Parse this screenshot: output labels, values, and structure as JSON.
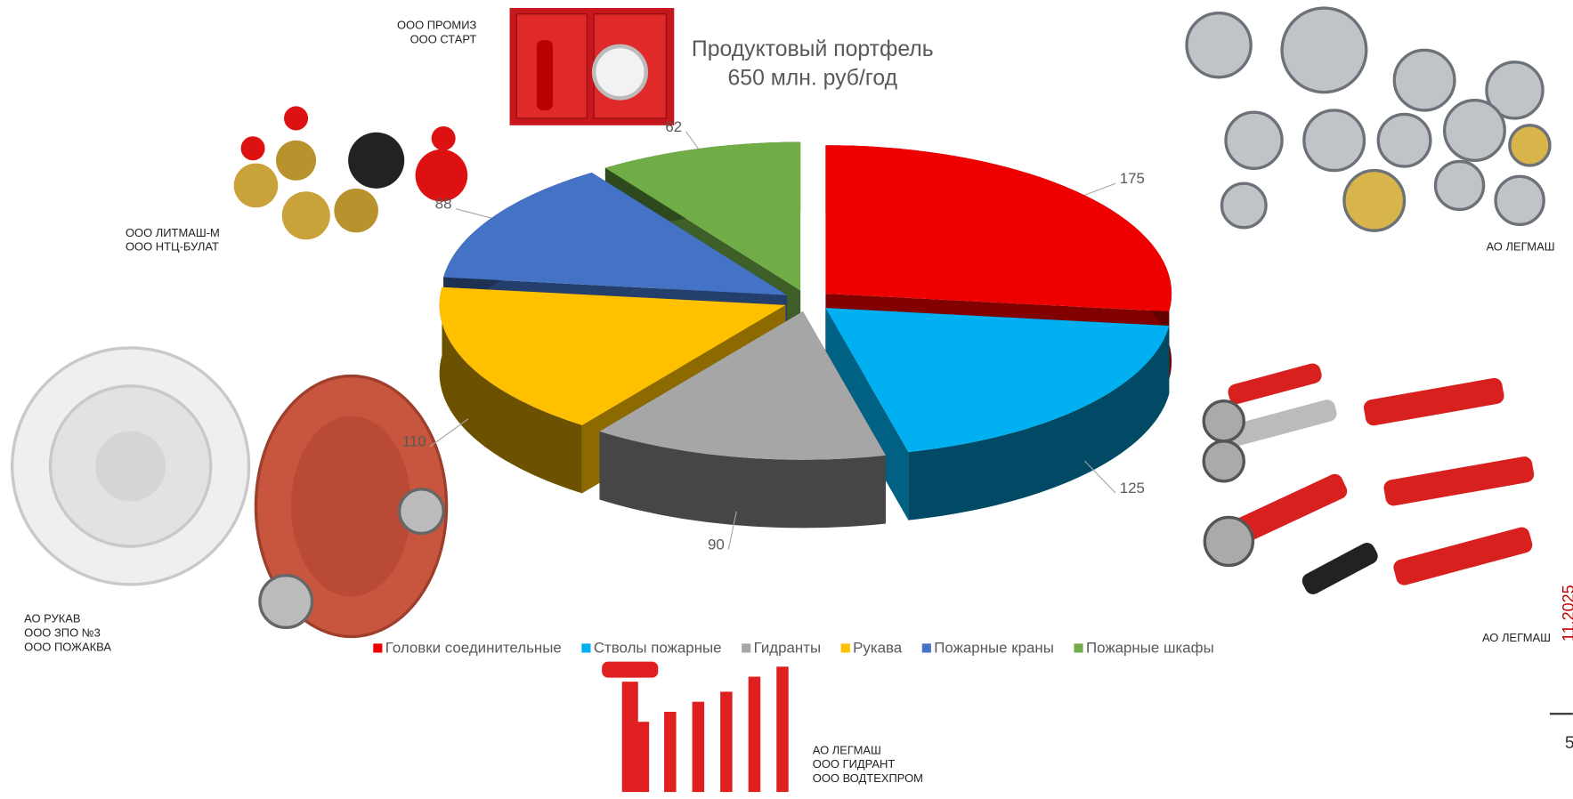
{
  "chart_data": {
    "type": "pie3d",
    "title": "Продуктовый портфель",
    "subtitle": "650 млн. руб/год",
    "categories": [
      "Головки соединительные",
      "Стволы пожарные",
      "Гидранты",
      "Рукава",
      "Пожарные краны",
      "Пожарные шкафы"
    ],
    "values": [
      175,
      125,
      90,
      110,
      88,
      62
    ],
    "colors": [
      "#ee0000",
      "#00b0f0",
      "#a6a6a6",
      "#ffc000",
      "#4472c4",
      "#70ad47"
    ],
    "legend": "bottom"
  },
  "annotations": [
    [
      "ООО ПРОМИЗ",
      "ООО СТАРТ"
    ],
    [
      "ООО ЛИТМАШ-М",
      "ООО НТЦ-БУЛАТ"
    ],
    [
      "АО ЛЕГМАШ"
    ],
    [
      "АО РУКАВ",
      "ООО ЗПО №3",
      "ООО ПОЖАКВА"
    ],
    [
      "АО ЛЕГМАШ"
    ],
    [
      "АО ЛЕГМАШ",
      "ООО ГИДРАНТ",
      "ООО ВОДТЕХПРОМ"
    ]
  ],
  "footer": {
    "date": "11.2025",
    "page": "5"
  }
}
